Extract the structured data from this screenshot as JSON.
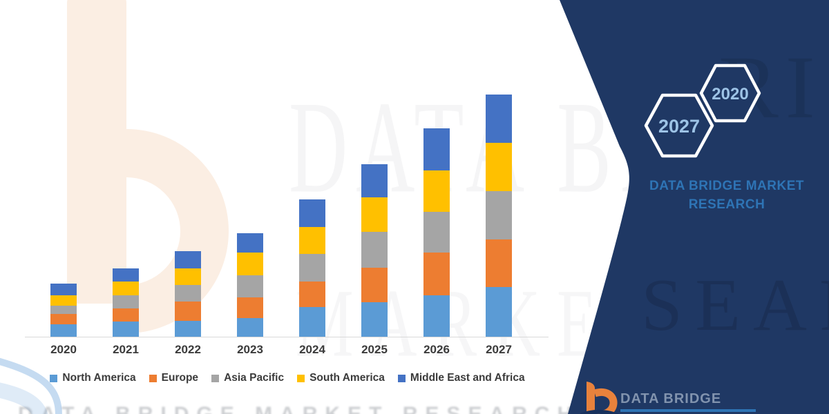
{
  "chart_data": {
    "type": "bar",
    "stacked": true,
    "title": "",
    "xlabel": "",
    "ylabel": "",
    "categories": [
      "2020",
      "2021",
      "2022",
      "2023",
      "2024",
      "2025",
      "2026",
      "2027"
    ],
    "series": [
      {
        "name": "North America",
        "color": "#5B9BD5",
        "values": [
          18,
          22,
          23,
          27,
          43,
          50,
          60,
          72
        ]
      },
      {
        "name": "Europe",
        "color": "#ED7D31",
        "values": [
          15,
          19,
          28,
          30,
          37,
          50,
          62,
          69
        ]
      },
      {
        "name": "Asia Pacific",
        "color": "#A5A5A5",
        "values": [
          12,
          19,
          24,
          32,
          40,
          52,
          59,
          70
        ]
      },
      {
        "name": "South America",
        "color": "#FFC000",
        "values": [
          15,
          20,
          24,
          33,
          39,
          50,
          60,
          70
        ]
      },
      {
        "name": "Middle East and Africa",
        "color": "#4472C4",
        "values": [
          17,
          19,
          25,
          28,
          40,
          48,
          61,
          70
        ]
      }
    ],
    "bar_order_bottom_to_top": [
      "North America",
      "Europe",
      "Asia Pacific",
      "South America",
      "Middle East and Africa"
    ],
    "value_axis_visible": false,
    "ylim": [
      0,
      360
    ],
    "grid": false,
    "legend_position": "bottom"
  },
  "side_panel": {
    "background_color": "#1F3864",
    "hexagon_badges": [
      {
        "label": "2027"
      },
      {
        "label": "2020"
      }
    ],
    "hexagon_text_color": "#9DC3E6",
    "brand_name_line1": "DATA BRIDGE MARKET",
    "brand_name_line2": "RESEARCH",
    "brand_text_color": "#2E74B5"
  },
  "footer_logo": {
    "icon": "data-bridge-b-logo",
    "icon_color": "#E8823C",
    "brand_text": "DATA BRIDGE",
    "text_color": "#8193AE",
    "underline_color": "#2E74B5"
  },
  "watermarks": {
    "big_text": "DATA BRI",
    "mid_text": "MARKET RE",
    "panel_text_top": "RI",
    "panel_text_mid": "SEARCH",
    "bottom_text": "DATA BRIDGE MARKET RESEARCH"
  }
}
